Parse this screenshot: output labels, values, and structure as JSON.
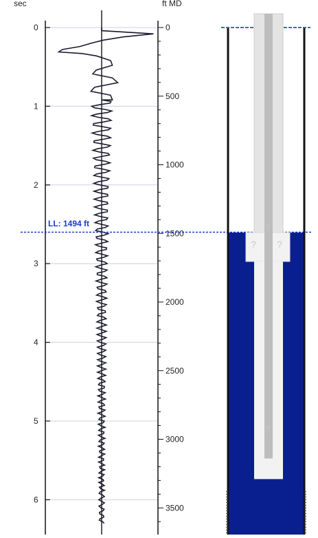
{
  "chart_data": {
    "type": "line",
    "left_axis": {
      "label": "sec",
      "ticks": [
        0,
        1,
        2,
        3,
        4,
        5,
        6
      ],
      "range": [
        0,
        6.3
      ]
    },
    "right_axis": {
      "label": "ft MD",
      "ticks": [
        0,
        500,
        1000,
        1500,
        2000,
        2500,
        3000,
        3500
      ],
      "range": [
        0,
        3600
      ]
    },
    "grid": true,
    "liquid_level": {
      "label": "LL: 1494 ft",
      "depth_ft": 1494,
      "time_sec": 2.6
    },
    "series": [
      {
        "type": "acoustic-trace",
        "x": "amplitude (relative)",
        "y": "time (sec)",
        "points": [
          [
            0,
            0
          ],
          [
            0,
            0.04
          ],
          [
            2.9,
            0.08
          ],
          [
            1.2,
            0.12
          ],
          [
            0.1,
            0.16
          ],
          [
            -0.6,
            0.2
          ],
          [
            -1.2,
            0.24
          ],
          [
            -2.2,
            0.28
          ],
          [
            -2.4,
            0.31
          ],
          [
            -1.1,
            0.33
          ],
          [
            -0.3,
            0.36
          ],
          [
            0.5,
            0.42
          ],
          [
            0.6,
            0.48
          ],
          [
            -0.3,
            0.54
          ],
          [
            -0.5,
            0.59
          ],
          [
            0.6,
            0.64
          ],
          [
            0.9,
            0.7
          ],
          [
            -0.4,
            0.76
          ],
          [
            -0.6,
            0.81
          ],
          [
            0.5,
            0.86
          ],
          [
            0.6,
            0.92
          ]
        ]
      }
    ],
    "wellbore": {
      "casing_depth_ft": 3600,
      "tubing_depth_ft": 3250,
      "liquid_top_ft": 1494,
      "liquid_color": "#0a1f8f",
      "surface_line_color": "#2a6fc9",
      "markers": [
        "?",
        "?",
        "?",
        "?"
      ]
    }
  },
  "colors": {
    "trace": "#1a1a2e",
    "grid": "#cfcfe6",
    "ll_line": "#1a3cc8",
    "ll_text": "#1a3cc8",
    "casing": "#111111",
    "tubing": "#e4e4e4",
    "rod": "#bdbdbd"
  }
}
